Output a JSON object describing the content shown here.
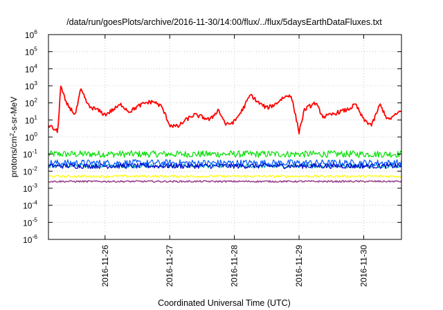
{
  "chart_data": {
    "type": "line",
    "title": "/data/run/goesPlots/archive/2016-11-30/14:00/flux/../flux/5daysEarthDataFluxes.txt",
    "xlabel": "Coordinated Universal Time (UTC)",
    "ylabel_prefix": "protons/cm",
    "ylabel_sup": "2",
    "ylabel_suffix": "-s-sr-MeV",
    "y_scale": "log",
    "ylim": [
      1e-06,
      1000000.0
    ],
    "y_ticks": [
      {
        "base": "10",
        "exp": "-6",
        "value": 1e-06
      },
      {
        "base": "10",
        "exp": "-5",
        "value": 1e-05
      },
      {
        "base": "10",
        "exp": "-4",
        "value": 0.0001
      },
      {
        "base": "10",
        "exp": "-3",
        "value": 0.001
      },
      {
        "base": "10",
        "exp": "-2",
        "value": 0.01
      },
      {
        "base": "10",
        "exp": "-1",
        "value": 0.1
      },
      {
        "base": "10",
        "exp": "0",
        "value": 1
      },
      {
        "base": "10",
        "exp": "1",
        "value": 10
      },
      {
        "base": "10",
        "exp": "2",
        "value": 100
      },
      {
        "base": "10",
        "exp": "3",
        "value": 1000
      },
      {
        "base": "10",
        "exp": "4",
        "value": 10000
      },
      {
        "base": "10",
        "exp": "5",
        "value": 100000
      },
      {
        "base": "10",
        "exp": "6",
        "value": 1000000
      }
    ],
    "xlim": [
      "2016-11-25T03:00",
      "2016-11-30T14:00"
    ],
    "x_ticks": [
      "2016-11-26",
      "2016-11-27",
      "2016-11-28",
      "2016-11-29",
      "2016-11-30"
    ],
    "grid": true,
    "legend": "none",
    "series": [
      {
        "color": "#ff0000",
        "line_width": 1.8,
        "x": [
          "2016-11-25T03:00",
          "2016-11-25T05:00",
          "2016-11-25T06:30",
          "2016-11-25T07:30",
          "2016-11-25T09:30",
          "2016-11-25T11:30",
          "2016-11-25T13:00",
          "2016-11-25T15:00",
          "2016-11-25T18:00",
          "2016-11-25T21:00",
          "2016-11-26T00:00",
          "2016-11-26T03:00",
          "2016-11-26T06:00",
          "2016-11-26T09:00",
          "2016-11-26T12:00",
          "2016-11-26T15:00",
          "2016-11-26T18:00",
          "2016-11-26T21:00",
          "2016-11-27T00:00",
          "2016-11-27T03:00",
          "2016-11-27T06:00",
          "2016-11-27T09:00",
          "2016-11-27T12:00",
          "2016-11-27T15:00",
          "2016-11-27T18:00",
          "2016-11-27T21:00",
          "2016-11-28T00:00",
          "2016-11-28T03:00",
          "2016-11-28T06:00",
          "2016-11-28T09:00",
          "2016-11-28T12:00",
          "2016-11-28T15:00",
          "2016-11-28T18:00",
          "2016-11-28T21:00",
          "2016-11-29T00:00",
          "2016-11-29T02:00",
          "2016-11-29T06:00",
          "2016-11-29T09:00",
          "2016-11-29T12:00",
          "2016-11-29T15:00",
          "2016-11-29T18:00",
          "2016-11-29T21:00",
          "2016-11-30T00:00",
          "2016-11-30T03:00",
          "2016-11-30T06:00",
          "2016-11-30T09:00",
          "2016-11-30T12:00",
          "2016-11-30T14:00"
        ],
        "y": [
          5,
          3,
          2,
          1000,
          100,
          40,
          20,
          600,
          60,
          40,
          20,
          40,
          80,
          30,
          60,
          100,
          120,
          60,
          5,
          4,
          10,
          20,
          15,
          10,
          40,
          5,
          8,
          40,
          300,
          100,
          50,
          80,
          200,
          300,
          2,
          40,
          100,
          15,
          20,
          30,
          40,
          80,
          10,
          5,
          80,
          10,
          20,
          40
        ],
        "noise": 0.12
      },
      {
        "color": "#00e000",
        "line_width": 1.2,
        "level": 0.1,
        "noise": 0.2
      },
      {
        "color": "#00b0b0",
        "line_width": 1.2,
        "level": 0.02,
        "noise": 0.12
      },
      {
        "color": "#0055ff",
        "line_width": 1.2,
        "level": 0.03,
        "noise": 0.2
      },
      {
        "color": "#0000cc",
        "line_width": 1.2,
        "level": 0.02,
        "noise": 0.15
      },
      {
        "color": "#ffff00",
        "line_width": 1.2,
        "level": 0.005,
        "noise": 0.07
      },
      {
        "color": "#993d8a",
        "line_width": 1.5,
        "level": 0.0025,
        "noise": 0.05
      }
    ]
  }
}
